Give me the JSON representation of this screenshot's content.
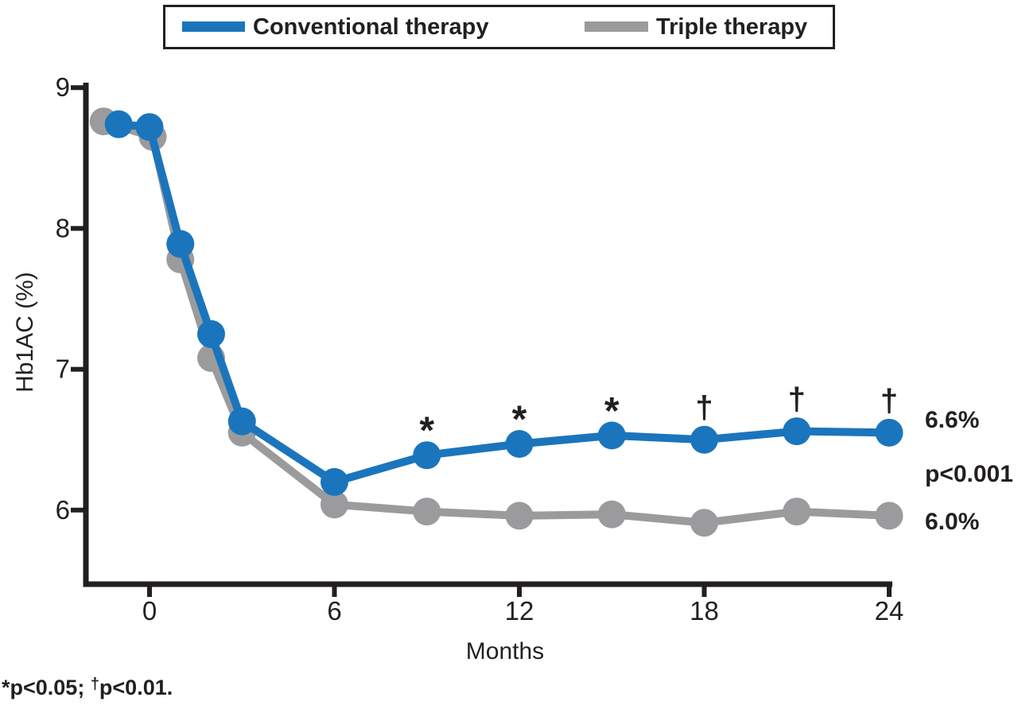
{
  "figure": {
    "background": "#ffffff",
    "ink_color": "#231f20"
  },
  "chart_data": {
    "type": "line",
    "title": "",
    "xlabel": "Months",
    "ylabel": "Hb1AC (%)",
    "x_ticks": [
      0,
      6,
      12,
      18,
      24
    ],
    "y_ticks": [
      9,
      8,
      7,
      6
    ],
    "xlim": [
      -2.1,
      24.1
    ],
    "ylim": [
      5.5,
      9.05
    ],
    "grid": false,
    "legend_position": "top",
    "months": [
      -1,
      0,
      1,
      2,
      3,
      6,
      9,
      12,
      15,
      18,
      21,
      24
    ],
    "series": [
      {
        "name": "Conventional therapy",
        "color": "#1b75bc",
        "values": [
          8.74,
          8.72,
          7.89,
          7.25,
          6.63,
          6.2,
          6.39,
          6.47,
          6.53,
          6.5,
          6.56,
          6.55
        ],
        "end_label": "6.6%"
      },
      {
        "name": "Triple therapy",
        "color": "#9b9b9d",
        "values": [
          8.76,
          8.65,
          7.78,
          7.08,
          6.55,
          6.04,
          5.99,
          5.96,
          5.97,
          5.91,
          5.99,
          5.96
        ],
        "end_label": "6.0%"
      }
    ],
    "annotations": [
      {
        "symbol": "*",
        "months": [
          9,
          12,
          15
        ]
      },
      {
        "symbol": "†",
        "months": [
          18,
          21,
          24
        ]
      }
    ],
    "comparison_label": "p<0.001"
  },
  "footnote": {
    "part1": "*p<0.05; ",
    "dagger": "†",
    "part2": "p<0.01."
  }
}
